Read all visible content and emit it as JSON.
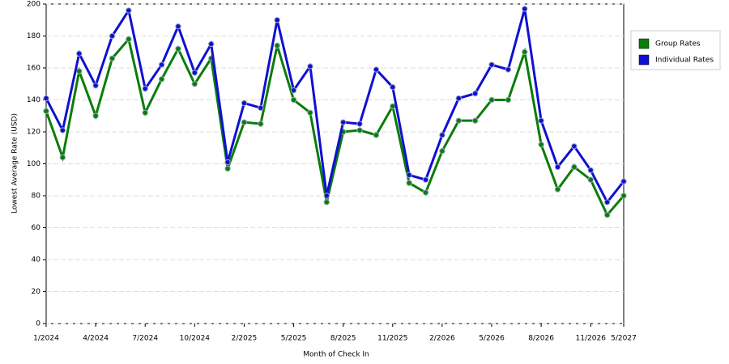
{
  "chart_data": {
    "type": "line",
    "x_label": "Month of Check In",
    "y_label": "Lowest Average Rate (USD)",
    "categories": [
      "1/2024",
      null,
      null,
      "4/2024",
      null,
      null,
      "7/2024",
      null,
      null,
      "10/2024",
      null,
      null,
      "2/2025",
      null,
      null,
      "5/2025",
      null,
      null,
      "8/2025",
      null,
      null,
      "11/2025",
      null,
      null,
      "2/2026",
      null,
      null,
      "5/2026",
      null,
      null,
      "8/2026",
      null,
      null,
      "11/2026",
      null,
      "5/2027"
    ],
    "series": [
      {
        "name": "Group Rates",
        "color": "#0a7d0a",
        "values": [
          133,
          104,
          158,
          130,
          166,
          178,
          132,
          153,
          172,
          150,
          166,
          97,
          126,
          125,
          174,
          140,
          132,
          76,
          120,
          121,
          118,
          136,
          88,
          82,
          108,
          127,
          127,
          140,
          140,
          170,
          112,
          84,
          98,
          90,
          68,
          80
        ]
      },
      {
        "name": "Individual Rates",
        "color": "#1010d0",
        "values": [
          141,
          121,
          169,
          149,
          180,
          196,
          147,
          162,
          186,
          157,
          175,
          101,
          138,
          135,
          190,
          146,
          161,
          80,
          126,
          125,
          159,
          148,
          93,
          90,
          118,
          141,
          144,
          162,
          159,
          197,
          127,
          98,
          111,
          96,
          76,
          89
        ]
      }
    ],
    "ylim": [
      0,
      200
    ],
    "yticks": [
      0,
      20,
      40,
      60,
      80,
      100,
      120,
      140,
      160,
      180,
      200
    ],
    "grid": true,
    "legend": "right"
  }
}
